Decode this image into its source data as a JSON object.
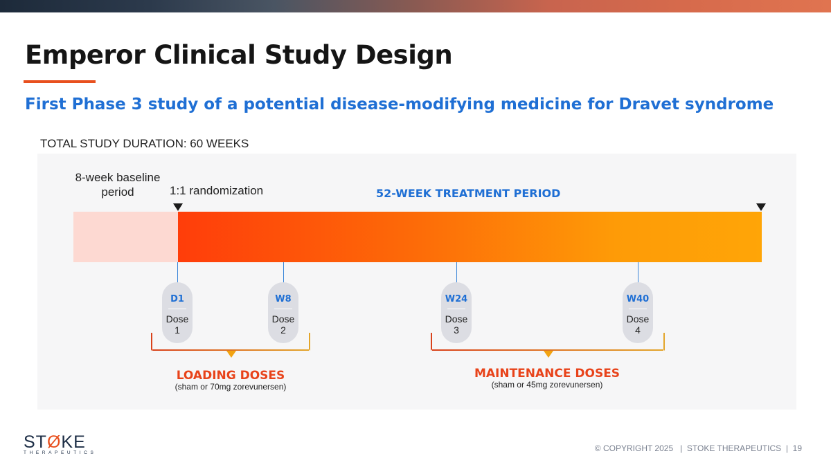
{
  "slide": {
    "title": "Emperor Clinical Study Design",
    "subtitle": "First Phase 3 study of a potential disease-modifying medicine for Dravet syndrome",
    "duration": "TOTAL STUDY DURATION: 60 WEEKS"
  },
  "timeline": {
    "baseline_label": "8-week baseline period",
    "randomization_label": "1:1 randomization",
    "treatment_label": "52-WEEK TREATMENT PERIOD",
    "doses": [
      {
        "week": "D1",
        "dose_word": "Dose",
        "dose_number": "1"
      },
      {
        "week": "W8",
        "dose_word": "Dose",
        "dose_number": "2"
      },
      {
        "week": "W24",
        "dose_word": "Dose",
        "dose_number": "3"
      },
      {
        "week": "W40",
        "dose_word": "Dose",
        "dose_number": "4"
      }
    ],
    "groups": [
      {
        "title": "LOADING DOSES",
        "detail": "(sham or 70mg zorevunersen)"
      },
      {
        "title": "MAINTENANCE DOSES",
        "detail": "(sham or 45mg zorevunersen)"
      }
    ]
  },
  "colors": {
    "title_blue": "#1f6fd4",
    "accent_orange": "#e8501e",
    "baseline_fill": "#fdd9d2",
    "treatment_start": "#ff3d0a",
    "treatment_end": "#ffa507",
    "pill_fill": "#dcdde3"
  },
  "logo": {
    "word_left": "ST",
    "word_mark": "Ø",
    "word_right": "KE",
    "tagline": "THERAPEUTICS"
  },
  "footer": {
    "copyright": "© COPYRIGHT 2025",
    "company": "STOKE THERAPEUTICS",
    "page_number": "19"
  }
}
